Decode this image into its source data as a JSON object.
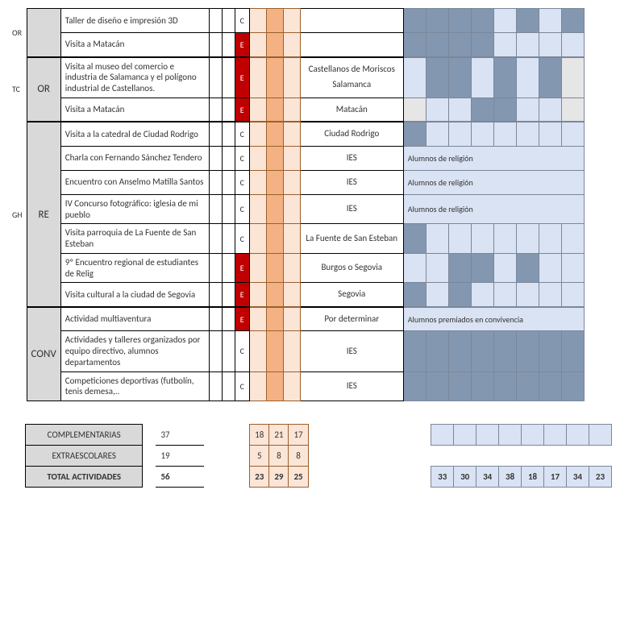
{
  "colors": {
    "groupBg": "#d9d9d9",
    "typeE_bg": "#c00000",
    "typeE_fg": "#ffffff",
    "orange_light": "#fbe5d6",
    "orange_mid": "#f4b183",
    "orange_border": "#9a602f",
    "blue_dark": "#8497b0",
    "blue_light": "#dae3f3",
    "blue_border": "#7a879a",
    "grey_light": "#e7e6e6"
  },
  "outerLabels": {
    "or": "OR",
    "tc": "TC",
    "gh": "GH"
  },
  "rows": [
    {
      "group": "",
      "groupSpan": 2,
      "desc": "Taller de diseño e impresión 3D",
      "type": "C",
      "loc": "",
      "blue": [
        "d",
        "d",
        "d",
        "d",
        "l",
        "d",
        "l",
        "d"
      ]
    },
    {
      "desc": "Visita a Matacán",
      "type": "E",
      "loc": "",
      "blue": [
        "d",
        "d",
        "d",
        "d",
        "l",
        "l",
        "l",
        "l"
      ]
    },
    {
      "group": "OR",
      "groupSpan": 2,
      "desc": "Visita al museo del comercio e industria de Salamanca y el polígono industrial de Castellanos.",
      "type": "E",
      "loc": "Castellanos de Moriscos Salamanca",
      "blue": [
        "l",
        "d",
        "d",
        "l",
        "d",
        "l",
        "d",
        "g"
      ]
    },
    {
      "desc": "Visita a Matacán",
      "type": "E",
      "loc": "Matacán",
      "blue": [
        "g",
        "l",
        "l",
        "d",
        "d",
        "l",
        "l",
        "g"
      ]
    },
    {
      "group": "RE",
      "groupSpan": 7,
      "desc": "Visita a la catedral de Ciudad Rodrigo",
      "type": "C",
      "loc": "Ciudad Rodrigo",
      "blue": [
        "d",
        "l",
        "l",
        "l",
        "l",
        "l",
        "l",
        "l"
      ]
    },
    {
      "desc": "Charla con Fernando Sánchez Tendero",
      "type": "C",
      "loc": "IES",
      "blueText": "Alumnos de religión"
    },
    {
      "desc": "Encuentro con Anselmo Matilla Santos",
      "type": "C",
      "loc": "IES",
      "blueText": "Alumnos de religión"
    },
    {
      "desc": "IV Concurso fotográfico: iglesia de mi pueblo",
      "type": "C",
      "loc": "IES",
      "blueText": "Alumnos de religión"
    },
    {
      "desc": "Visita parroquia de La Fuente de San Esteban",
      "type": "C",
      "loc": "La Fuente de San Esteban",
      "blue": [
        "d",
        "l",
        "l",
        "l",
        "l",
        "l",
        "l",
        "l"
      ]
    },
    {
      "desc": "9º Encuentro regional de estudiantes de Relig",
      "type": "E",
      "loc": "Burgos o Segovia",
      "blue": [
        "l",
        "l",
        "d",
        "d",
        "l",
        "d",
        "l",
        "l"
      ]
    },
    {
      "desc": "Visita cultural a la ciudad de Segovia",
      "type": "E",
      "loc": "Segovia",
      "blue": [
        "d",
        "l",
        "d",
        "l",
        "l",
        "l",
        "l",
        "l"
      ]
    },
    {
      "group": "CONV",
      "groupSpan": 3,
      "desc": "Actividad multiaventura",
      "type": "E",
      "loc": "Por determinar",
      "blueText": "Alumnos premiados en convivencia"
    },
    {
      "desc": "Actividades y talleres organizados por equipo directivo, alumnos departamentos",
      "type": "C",
      "loc": "IES",
      "blue": [
        "d",
        "d",
        "d",
        "d",
        "d",
        "d",
        "d",
        "d"
      ]
    },
    {
      "desc": "Competiciones deportivas (futbolín, tenis demesa,..",
      "type": "C",
      "loc": "IES",
      "blue": [
        "d",
        "d",
        "d",
        "d",
        "d",
        "d",
        "d",
        "d"
      ]
    }
  ],
  "summary": {
    "rows": [
      {
        "label": "COMPLEMENTARIAS",
        "total": "37",
        "o": [
          "18",
          "21",
          "17"
        ],
        "bold": false,
        "showBlue": false
      },
      {
        "label": "EXTRAESCOLARES",
        "total": "19",
        "o": [
          "5",
          "8",
          "8"
        ],
        "bold": false,
        "showBlue": false
      },
      {
        "label": "TOTAL ACTIVIDADES",
        "total": "56",
        "o": [
          "23",
          "29",
          "25"
        ],
        "bold": true,
        "showBlue": true,
        "blue": [
          "33",
          "30",
          "34",
          "38",
          "18",
          "17",
          "34",
          "23"
        ]
      }
    ]
  }
}
